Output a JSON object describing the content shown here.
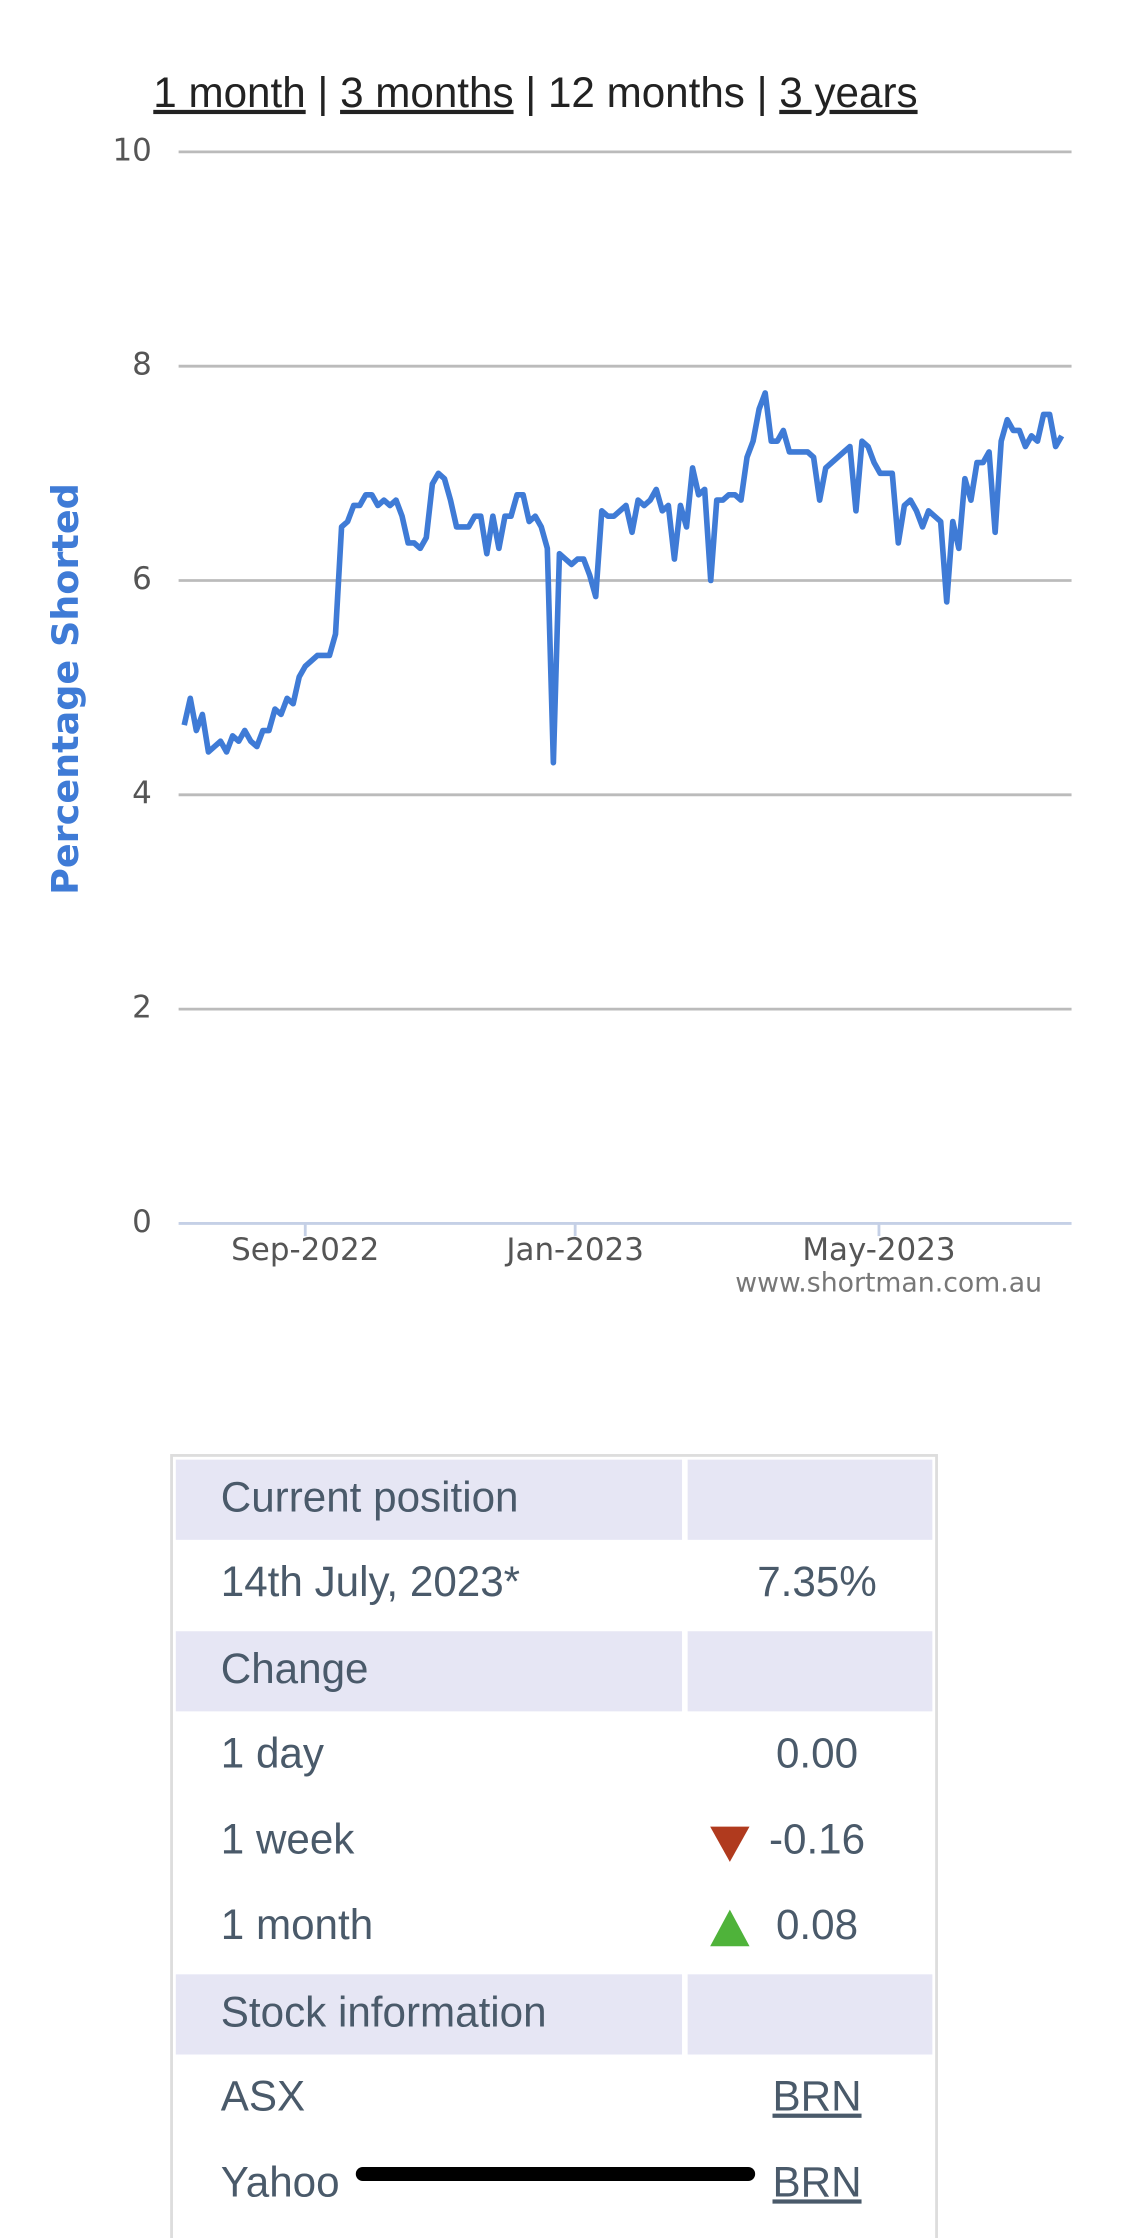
{
  "nav": {
    "links": [
      "1 month",
      "3 months",
      "12 months",
      "3 years"
    ],
    "separator": "|"
  },
  "chart_data": {
    "type": "line",
    "y_label": "Percentage Shorted",
    "watermark": "www.shortman.com.au",
    "color": "#3f7bd6",
    "grid": true,
    "values": [
      4.65,
      4.9,
      4.6,
      4.75,
      4.4,
      4.45,
      4.5,
      4.4,
      4.55,
      4.5,
      4.6,
      4.5,
      4.45,
      4.6,
      4.6,
      4.8,
      4.75,
      4.9,
      4.85,
      5.1,
      5.2,
      5.25,
      5.3,
      5.3,
      5.3,
      5.5,
      6.5,
      6.55,
      6.7,
      6.7,
      6.8,
      6.8,
      6.7,
      6.75,
      6.7,
      6.75,
      6.6,
      6.35,
      6.35,
      6.3,
      6.4,
      6.9,
      7.0,
      6.95,
      6.75,
      6.5,
      6.5,
      6.5,
      6.6,
      6.6,
      6.25,
      6.6,
      6.3,
      6.6,
      6.6,
      6.8,
      6.8,
      6.55,
      6.6,
      6.5,
      6.3,
      4.3,
      6.25,
      6.2,
      6.15,
      6.2,
      6.2,
      6.05,
      5.85,
      6.65,
      6.6,
      6.6,
      6.65,
      6.7,
      6.45,
      6.75,
      6.7,
      6.75,
      6.85,
      6.65,
      6.7,
      6.2,
      6.7,
      6.5,
      7.05,
      6.8,
      6.85,
      6.0,
      6.75,
      6.75,
      6.8,
      6.8,
      6.75,
      7.15,
      7.3,
      7.6,
      7.75,
      7.3,
      7.3,
      7.4,
      7.2,
      7.2,
      7.2,
      7.2,
      7.15,
      6.75,
      7.05,
      7.1,
      7.15,
      7.2,
      7.25,
      6.65,
      7.3,
      7.25,
      7.1,
      7.0,
      7.0,
      7.0,
      6.35,
      6.7,
      6.75,
      6.65,
      6.5,
      6.65,
      6.6,
      6.55,
      5.8,
      6.55,
      6.3,
      6.95,
      6.75,
      7.1,
      7.1,
      7.2,
      6.45,
      7.3,
      7.5,
      7.4,
      7.4,
      7.25,
      7.35,
      7.3,
      7.55,
      7.55,
      7.25,
      7.35
    ],
    "xlim": [
      0,
      145
    ],
    "xticks": [
      {
        "value": 20,
        "label": "Sep-2022"
      },
      {
        "value": 64.6,
        "label": "Jan-2023"
      },
      {
        "value": 114.8,
        "label": "May-2023"
      }
    ],
    "ylim": [
      0,
      10
    ],
    "yticks": [
      0,
      2,
      4,
      6,
      8,
      10
    ]
  },
  "table": {
    "sections": [
      {
        "title": "Current position",
        "rows": [
          [
            "14th July, 2023*",
            "7.35%"
          ]
        ]
      },
      {
        "title": "Change",
        "rows": [
          [
            "1 day",
            "0.00"
          ],
          [
            "1 week",
            "-0.16"
          ],
          [
            "1 month",
            "0.08"
          ]
        ]
      },
      {
        "title": "Stock information",
        "rows": [
          [
            "ASX",
            "BRN"
          ],
          [
            "Yahoo",
            "BRN"
          ]
        ]
      }
    ]
  }
}
